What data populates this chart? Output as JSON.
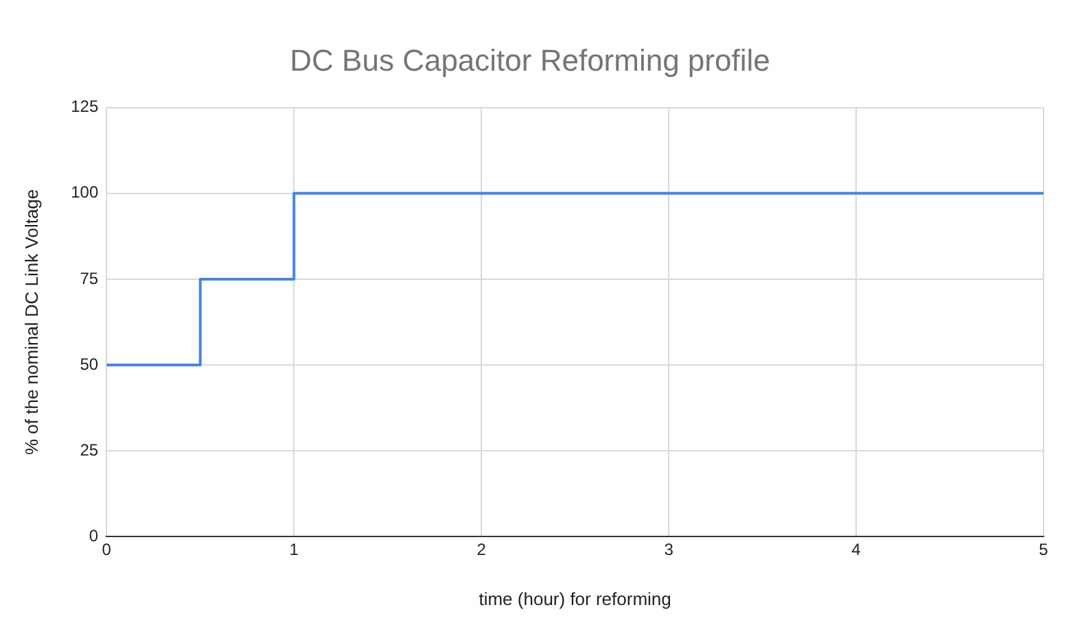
{
  "chart_data": {
    "type": "step",
    "title": "DC Bus Capacitor Reforming profile",
    "xlabel": "time (hour) for reforming",
    "ylabel": "% of the nominal DC Link Voltage",
    "x": [
      0,
      0.5,
      1,
      5
    ],
    "series": [
      {
        "color": "#4285f4",
        "values": [
          50,
          75,
          100,
          100
        ]
      }
    ],
    "xlim": [
      0,
      5
    ],
    "xticks": [
      0,
      1,
      2,
      3,
      4,
      5
    ],
    "ylim": [
      0,
      125
    ],
    "yticks": [
      0,
      25,
      50,
      75,
      100,
      125
    ],
    "grid": true,
    "legend": false,
    "marker": "none",
    "line_style": "solid"
  }
}
